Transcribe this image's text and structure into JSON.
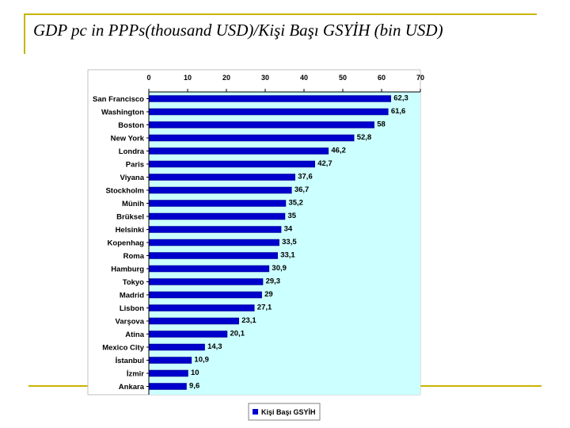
{
  "slide": {
    "title": "GDP pc in PPPs(thousand USD)/Kişi Başı GSYİH (bin USD)"
  },
  "colors": {
    "bar": "#0000cc",
    "plot_bg": "#ccffff",
    "accent": "#c8b400"
  },
  "chart_data": {
    "type": "bar",
    "orientation": "horizontal",
    "categories": [
      "San Francisco",
      "Washington",
      "Boston",
      "New York",
      "Londra",
      "Paris",
      "Viyana",
      "Stockholm",
      "Münih",
      "Brüksel",
      "Helsinki",
      "Kopenhag",
      "Roma",
      "Hamburg",
      "Tokyo",
      "Madrid",
      "Lisbon",
      "Varşova",
      "Atina",
      "Mexico City",
      "İstanbul",
      "İzmir",
      "Ankara"
    ],
    "series": [
      {
        "name": "Kişi Başı GSYİH",
        "values": [
          62.3,
          61.6,
          58,
          52.8,
          46.2,
          42.7,
          37.6,
          36.7,
          35.2,
          35,
          34,
          33.5,
          33.1,
          30.9,
          29.3,
          29,
          27.1,
          23.1,
          20.1,
          14.3,
          10.9,
          10,
          9.6
        ],
        "labels": [
          "62,3",
          "61,6",
          "58",
          "52,8",
          "46,2",
          "42,7",
          "37,6",
          "36,7",
          "35,2",
          "35",
          "34",
          "33,5",
          "33,1",
          "30,9",
          "29,3",
          "29",
          "27,1",
          "23,1",
          "20,1",
          "14,3",
          "10,9",
          "10",
          "9,6"
        ]
      }
    ],
    "x_ticks": [
      0,
      10,
      20,
      30,
      40,
      50,
      60,
      70
    ],
    "xlim": [
      0,
      70
    ],
    "x_axis_position": "top",
    "grid": false,
    "legend_position": "bottom-center"
  }
}
